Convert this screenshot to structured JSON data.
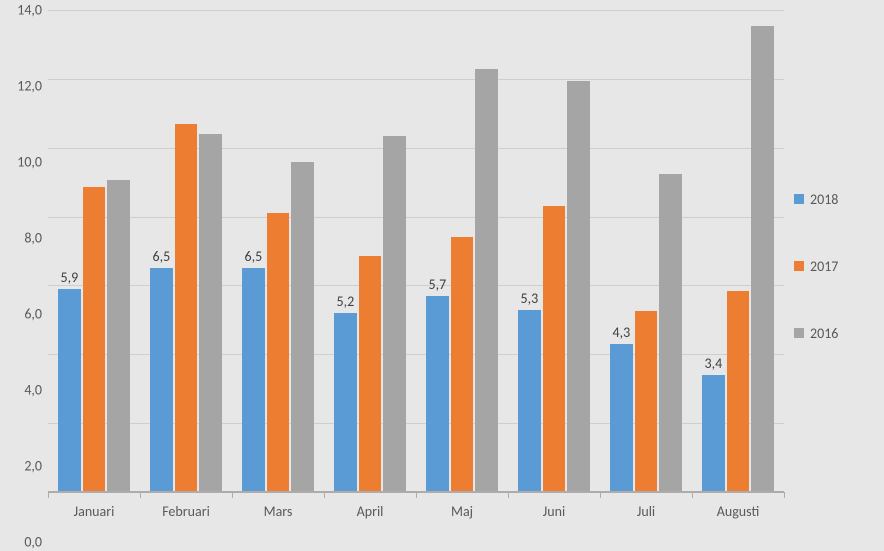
{
  "chart": {
    "type": "bar",
    "background_color": "#e7e7e7",
    "grid_color": "#cecece",
    "axis_color": "#afabab",
    "text_color": "#595959",
    "bar_label_color": "#404040",
    "ylim": [
      0.0,
      14.0
    ],
    "ytick_step": 2.0,
    "ytick_labels": [
      "0,0",
      "2,0",
      "4,0",
      "6,0",
      "8,0",
      "10,0",
      "12,0",
      "14,0"
    ],
    "label_fontsize": 14,
    "categories": [
      "Januari",
      "Februari",
      "Mars",
      "April",
      "Maj",
      "Juni",
      "Juli",
      "Augusti"
    ],
    "series": [
      {
        "name": "2018",
        "color": "#5b9bd5",
        "values": [
          5.9,
          6.5,
          6.5,
          5.2,
          5.7,
          5.3,
          4.3,
          3.4
        ],
        "value_labels": [
          "5,9",
          "6,5",
          "6,5",
          "5,2",
          "5,7",
          "5,3",
          "4,3",
          "3,4"
        ],
        "show_labels": true
      },
      {
        "name": "2017",
        "color": "#ed7d31",
        "values": [
          8.85,
          10.7,
          8.1,
          6.85,
          7.4,
          8.3,
          5.25,
          5.85
        ],
        "value_labels": [],
        "show_labels": false
      },
      {
        "name": "2016",
        "color": "#a5a5a5",
        "values": [
          9.05,
          10.4,
          9.6,
          10.35,
          12.3,
          11.95,
          9.25,
          13.55
        ],
        "value_labels": [],
        "show_labels": false
      }
    ],
    "legend": {
      "position": "right",
      "fontsize": 14
    }
  }
}
